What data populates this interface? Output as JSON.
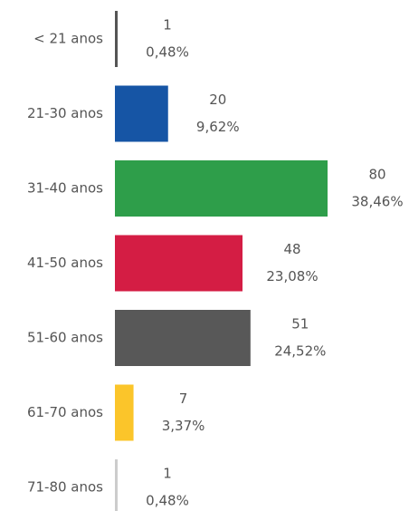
{
  "chart_data": {
    "type": "bar",
    "orientation": "horizontal",
    "categories": [
      "< 21 anos",
      "21-30 anos",
      "31-40 anos",
      "41-50 anos",
      "51-60 anos",
      "61-70 anos",
      "71-80 anos"
    ],
    "values": [
      1,
      20,
      80,
      48,
      51,
      7,
      1
    ],
    "percent": [
      0.48,
      9.62,
      38.46,
      23.08,
      24.52,
      3.37,
      0.48
    ],
    "percent_labels": [
      "0,48%",
      "9,62%",
      "38,46%",
      "23,08%",
      "24,52%",
      "3,37%",
      "0,48%"
    ],
    "colors": [
      "#555555",
      "#1655a5",
      "#2e9e4a",
      "#d41d44",
      "#585858",
      "#fbc52a",
      "#cccccc"
    ]
  }
}
